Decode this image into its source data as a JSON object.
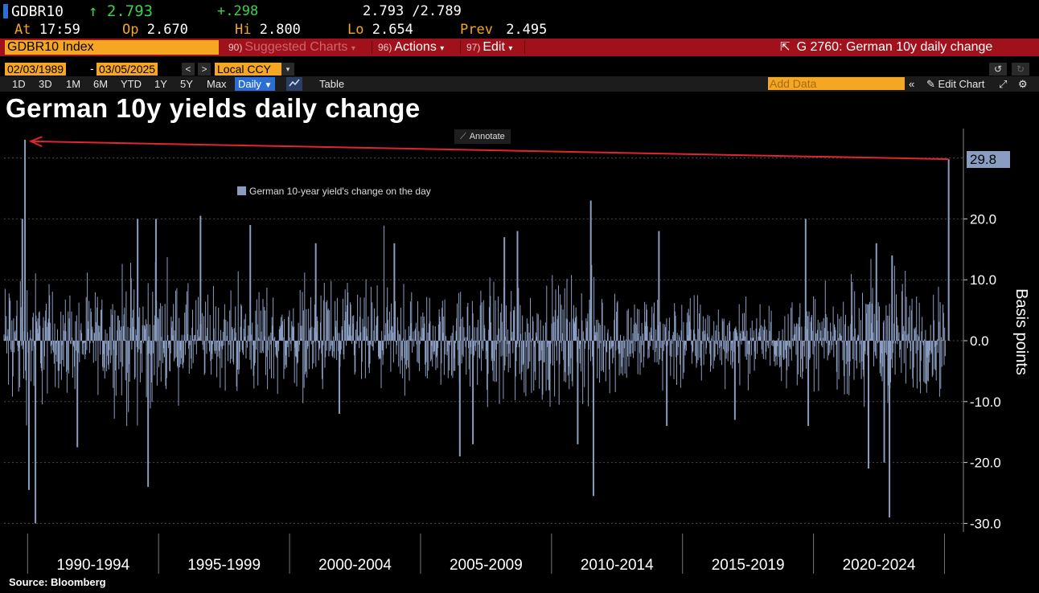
{
  "header": {
    "ticker": "GDBR10",
    "last": "2.793",
    "change": "+.298",
    "bid_ask": "2.793 /2.789",
    "at_label": "At",
    "time": "17:59",
    "open_label": "Op",
    "open": "2.670",
    "high_label": "Hi",
    "high": "2.800",
    "low_label": "Lo",
    "low": "2.654",
    "prev_label": "Prev",
    "prev": "2.495"
  },
  "function_bar": {
    "security": "GDBR10 Index",
    "suggested_num": "90)",
    "suggested": "Suggested Charts",
    "actions_num": "96)",
    "actions": "Actions",
    "edit_num": "97)",
    "edit": "Edit",
    "chart_id": "G 2760: German 10y daily change"
  },
  "controls": {
    "start_date": "02/03/1989",
    "end_date": "03/05/2025",
    "dash": "-",
    "prev_btn": "<",
    "next_btn": ">",
    "currency": "Local CCY",
    "ranges": [
      "1D",
      "3D",
      "1M",
      "6M",
      "YTD",
      "1Y",
      "5Y",
      "Max"
    ],
    "frequency": "Daily",
    "table": "Table",
    "add_data_placeholder": "Add Data",
    "edit_chart": "Edit Chart"
  },
  "colors": {
    "bar": "#8a9dc0",
    "arrow": "#e0252e",
    "amber": "#f5a623",
    "function_bar": "#a1111c",
    "last_value_tag": "#8a9dc0"
  },
  "annotate_label": "Annotate",
  "source": "Source: Bloomberg",
  "chart_data": {
    "type": "bar",
    "title": "German 10y yields daily change",
    "legend": [
      "German 10-year yield's change on the day"
    ],
    "legend_position": "top-left",
    "ylabel": "Basis points",
    "ylim": [
      -31,
      33
    ],
    "yticks": [
      "20.0",
      "10.0",
      "0.0",
      "-10.0",
      "-20.0",
      "-30.0"
    ],
    "ytick_values": [
      20,
      10,
      0,
      -10,
      -20,
      -30
    ],
    "x_start_year": 1989.1,
    "x_end_year": 2025.17,
    "xtick_labels": [
      "1990-1994",
      "1995-1999",
      "2000-2004",
      "2005-2009",
      "2010-2014",
      "2015-2019",
      "2020-2024"
    ],
    "xtick_periods": [
      [
        1990,
        1995
      ],
      [
        1995,
        2000
      ],
      [
        2000,
        2005
      ],
      [
        2005,
        2010
      ],
      [
        2010,
        2015
      ],
      [
        2015,
        2020
      ],
      [
        2020,
        2025
      ]
    ],
    "last_value": "29.8",
    "last_value_num": 29.8,
    "annotation": "Arrow from latest daily change (29.8) back to the comparable 1990 spike",
    "arrow_from": {
      "year": 2025.16,
      "value": 29.8
    },
    "arrow_to": {
      "year": 1990.0,
      "value": 33.0
    },
    "spikes": [
      {
        "year": 1989.9,
        "value": 33.0
      },
      {
        "year": 1989.8,
        "value": 20.0
      },
      {
        "year": 1990.05,
        "value": -24.5
      },
      {
        "year": 1990.3,
        "value": -30.0
      },
      {
        "year": 1991.9,
        "value": -17.5
      },
      {
        "year": 1994.2,
        "value": 20.0
      },
      {
        "year": 1994.6,
        "value": -24.0
      },
      {
        "year": 1994.9,
        "value": 20.0
      },
      {
        "year": 1996.6,
        "value": 20.5
      },
      {
        "year": 1998.5,
        "value": 19.0
      },
      {
        "year": 2001.0,
        "value": 16.0
      },
      {
        "year": 2001.9,
        "value": -12.0
      },
      {
        "year": 2004.0,
        "value": 16.0
      },
      {
        "year": 2006.5,
        "value": -19.0
      },
      {
        "year": 2007.0,
        "value": -17.0
      },
      {
        "year": 2008.2,
        "value": 17.0
      },
      {
        "year": 2008.7,
        "value": 18.0
      },
      {
        "year": 2011.5,
        "value": 23.0
      },
      {
        "year": 2011.6,
        "value": -25.5
      },
      {
        "year": 2011.0,
        "value": -17.0
      },
      {
        "year": 2014.1,
        "value": 18.0
      },
      {
        "year": 2014.4,
        "value": -14.0
      },
      {
        "year": 2017.0,
        "value": -13.0
      },
      {
        "year": 2019.7,
        "value": 20.0
      },
      {
        "year": 2019.8,
        "value": -14.0
      },
      {
        "year": 2022.1,
        "value": -21.0
      },
      {
        "year": 2022.4,
        "value": 16.0
      },
      {
        "year": 2022.9,
        "value": -29.0
      },
      {
        "year": 2022.7,
        "value": -20.0
      },
      {
        "year": 2023.0,
        "value": 14.0
      },
      {
        "year": 2025.16,
        "value": 29.8
      }
    ],
    "volatility_profile": [
      [
        1989,
        8
      ],
      [
        1990,
        9
      ],
      [
        1991,
        6.5
      ],
      [
        1992,
        6
      ],
      [
        1993,
        6
      ],
      [
        1994,
        9.5
      ],
      [
        1995,
        7
      ],
      [
        1996,
        6
      ],
      [
        1997,
        5.5
      ],
      [
        1998,
        6
      ],
      [
        1999,
        6.5
      ],
      [
        2000,
        6
      ],
      [
        2001,
        6.5
      ],
      [
        2002,
        6.5
      ],
      [
        2003,
        6.5
      ],
      [
        2004,
        6
      ],
      [
        2005,
        5.5
      ],
      [
        2006,
        5.5
      ],
      [
        2007,
        6
      ],
      [
        2008,
        8.5
      ],
      [
        2009,
        7.5
      ],
      [
        2010,
        6.5
      ],
      [
        2011,
        8.5
      ],
      [
        2012,
        6.5
      ],
      [
        2013,
        6
      ],
      [
        2014,
        5.5
      ],
      [
        2015,
        6.5
      ],
      [
        2016,
        5
      ],
      [
        2017,
        4.5
      ],
      [
        2018,
        4.5
      ],
      [
        2019,
        5
      ],
      [
        2020,
        5.5
      ],
      [
        2021,
        5
      ],
      [
        2022,
        10
      ],
      [
        2023,
        8.5
      ],
      [
        2024,
        6.5
      ],
      [
        2025,
        7
      ]
    ]
  }
}
